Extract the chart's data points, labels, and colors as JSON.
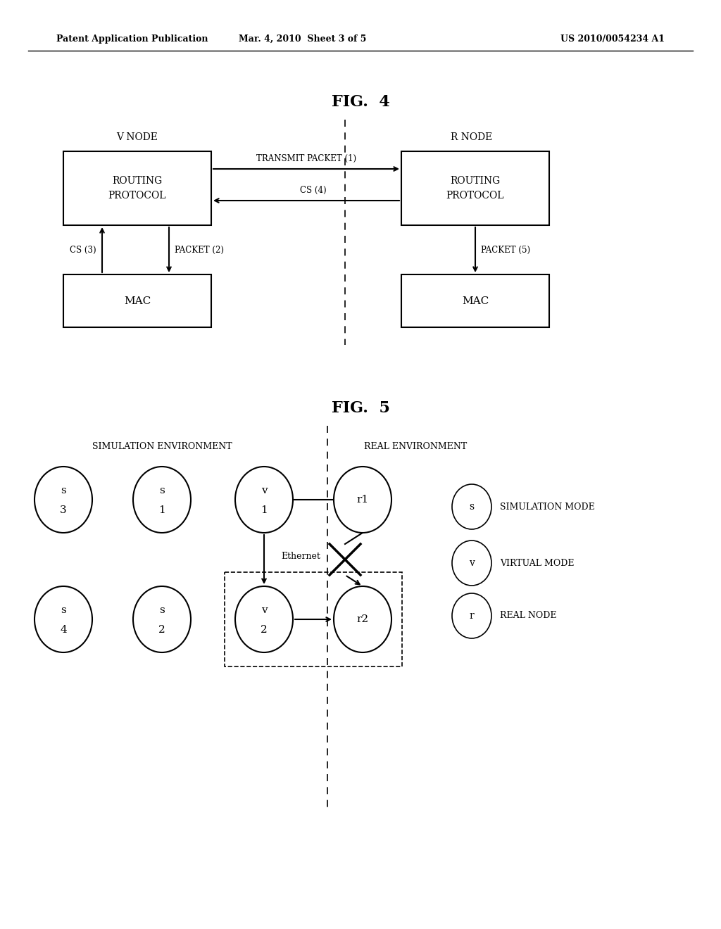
{
  "header_left": "Patent Application Publication",
  "header_mid": "Mar. 4, 2010  Sheet 3 of 5",
  "header_right": "US 2010/0054234 A1",
  "fig4_title": "FIG.  4",
  "fig5_title": "FIG.  5",
  "background_color": "#ffffff",
  "text_color": "#000000",
  "fig4": {
    "v_node_label": "V NODE",
    "r_node_label": "R NODE",
    "rp_left_label": "ROUTING\nPROTOCOL",
    "rp_right_label": "ROUTING\nPROTOCOL",
    "mac_left_label": "MAC",
    "mac_right_label": "MAC",
    "arrow1_label": "TRANSMIT PACKET (1)",
    "arrow2_label": "CS (4)",
    "cs3_label": "CS (3)",
    "packet2_label": "PACKET (2)",
    "packet5_label": "PACKET (5)"
  },
  "fig5": {
    "sim_env_label": "SIMULATION ENVIRONMENT",
    "real_env_label": "REAL ENVIRONMENT",
    "ethernet_label": "Ethernet"
  }
}
